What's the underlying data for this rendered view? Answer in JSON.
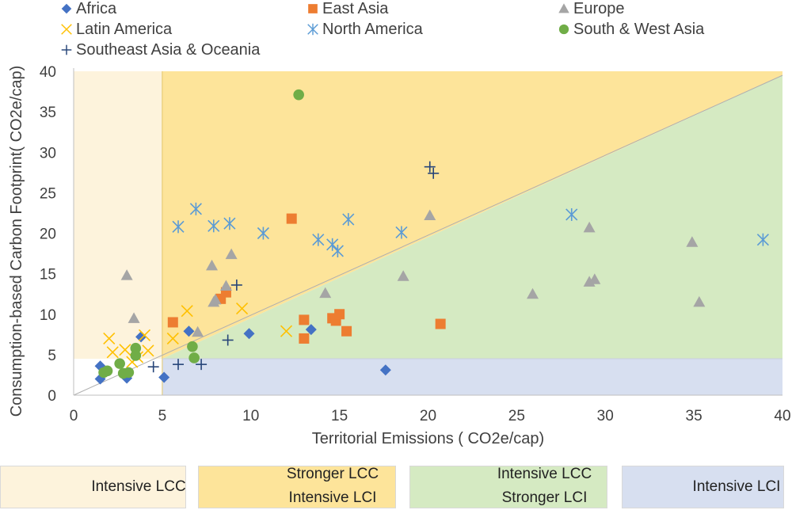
{
  "chart_data": {
    "type": "scatter",
    "xlabel": "Territorial Emissions ( CO2e/cap)",
    "ylabel": "Consumption-based Carbon Footprint( CO2e/cap)",
    "xlim": [
      0,
      40
    ],
    "ylim": [
      0,
      40
    ],
    "x_ticks": [
      "0",
      "5",
      "10",
      "15",
      "20",
      "25",
      "30",
      "35",
      "40"
    ],
    "y_ticks": [
      "0",
      "5",
      "10",
      "15",
      "20",
      "25",
      "30",
      "35",
      "40"
    ],
    "grid": false,
    "legend_position": "top",
    "zones": [
      {
        "label_lines": [
          "Intensive LCC"
        ],
        "color": "#fdf3dc"
      },
      {
        "label_lines": [
          "Stronger LCC",
          "Intensive LCI"
        ],
        "color": "#fde49a"
      },
      {
        "label_lines": [
          "Intensive LCC",
          "Stronger LCI"
        ],
        "color": "#d5eac2"
      },
      {
        "label_lines": [
          "Intensive LCI"
        ],
        "color": "#d7dff0"
      }
    ],
    "series": [
      {
        "name": "Africa",
        "marker": "diamond",
        "color": "#4472c4",
        "points": [
          [
            1.5,
            3.6
          ],
          [
            1.5,
            2.0
          ],
          [
            3.0,
            2.1
          ],
          [
            3.8,
            7.2
          ],
          [
            5.1,
            2.2
          ],
          [
            6.5,
            7.9
          ],
          [
            9.9,
            7.6
          ],
          [
            13.4,
            8.1
          ],
          [
            17.6,
            3.1
          ]
        ]
      },
      {
        "name": "East Asia",
        "marker": "square",
        "color": "#ed7d31",
        "points": [
          [
            5.6,
            9.0
          ],
          [
            8.3,
            11.9
          ],
          [
            8.6,
            12.7
          ],
          [
            12.3,
            21.8
          ],
          [
            13.0,
            9.3
          ],
          [
            13.0,
            7.0
          ],
          [
            14.6,
            9.5
          ],
          [
            14.8,
            9.2
          ],
          [
            15.0,
            10.0
          ],
          [
            15.4,
            7.9
          ],
          [
            20.7,
            8.8
          ]
        ]
      },
      {
        "name": "Europe",
        "marker": "triangle",
        "color": "#a5a5a5",
        "points": [
          [
            3.0,
            14.8
          ],
          [
            3.4,
            9.5
          ],
          [
            7.0,
            7.8
          ],
          [
            7.8,
            16.0
          ],
          [
            7.9,
            11.5
          ],
          [
            8.0,
            11.8
          ],
          [
            8.6,
            13.5
          ],
          [
            8.9,
            17.4
          ],
          [
            14.2,
            12.6
          ],
          [
            18.6,
            14.7
          ],
          [
            20.1,
            22.2
          ],
          [
            25.9,
            12.5
          ],
          [
            29.1,
            14.0
          ],
          [
            29.1,
            20.7
          ],
          [
            29.4,
            14.3
          ],
          [
            34.9,
            18.9
          ],
          [
            35.3,
            11.5
          ]
        ]
      },
      {
        "name": "Latin America",
        "marker": "x",
        "color": "#ffc000",
        "points": [
          [
            2.0,
            7.0
          ],
          [
            2.2,
            5.3
          ],
          [
            2.9,
            5.6
          ],
          [
            3.3,
            4.1
          ],
          [
            3.6,
            4.7
          ],
          [
            4.0,
            7.4
          ],
          [
            4.2,
            5.5
          ],
          [
            5.6,
            7.0
          ],
          [
            6.4,
            10.4
          ],
          [
            9.5,
            10.7
          ],
          [
            12.0,
            7.9
          ]
        ]
      },
      {
        "name": "North America",
        "marker": "asterisk",
        "color": "#5b9bd5",
        "points": [
          [
            5.9,
            20.8
          ],
          [
            6.9,
            23.0
          ],
          [
            7.9,
            20.9
          ],
          [
            8.8,
            21.2
          ],
          [
            10.7,
            20.0
          ],
          [
            13.8,
            19.2
          ],
          [
            14.6,
            18.6
          ],
          [
            14.9,
            17.8
          ],
          [
            15.5,
            21.7
          ],
          [
            18.5,
            20.1
          ],
          [
            28.1,
            22.3
          ],
          [
            38.9,
            19.2
          ]
        ]
      },
      {
        "name": "South & West Asia",
        "marker": "circle",
        "color": "#70ad47",
        "points": [
          [
            1.7,
            2.8
          ],
          [
            1.9,
            3.0
          ],
          [
            2.6,
            3.9
          ],
          [
            2.8,
            2.7
          ],
          [
            3.1,
            2.8
          ],
          [
            3.5,
            5.8
          ],
          [
            3.5,
            4.9
          ],
          [
            6.7,
            6.0
          ],
          [
            6.8,
            4.6
          ],
          [
            12.7,
            37.1
          ]
        ]
      },
      {
        "name": "Southeast Asia & Oceania",
        "marker": "plus",
        "color": "#264478",
        "points": [
          [
            4.5,
            3.5
          ],
          [
            5.9,
            3.8
          ],
          [
            7.2,
            3.8
          ],
          [
            8.7,
            6.8
          ],
          [
            9.2,
            13.6
          ],
          [
            20.1,
            28.2
          ],
          [
            20.3,
            27.4
          ]
        ]
      }
    ]
  }
}
